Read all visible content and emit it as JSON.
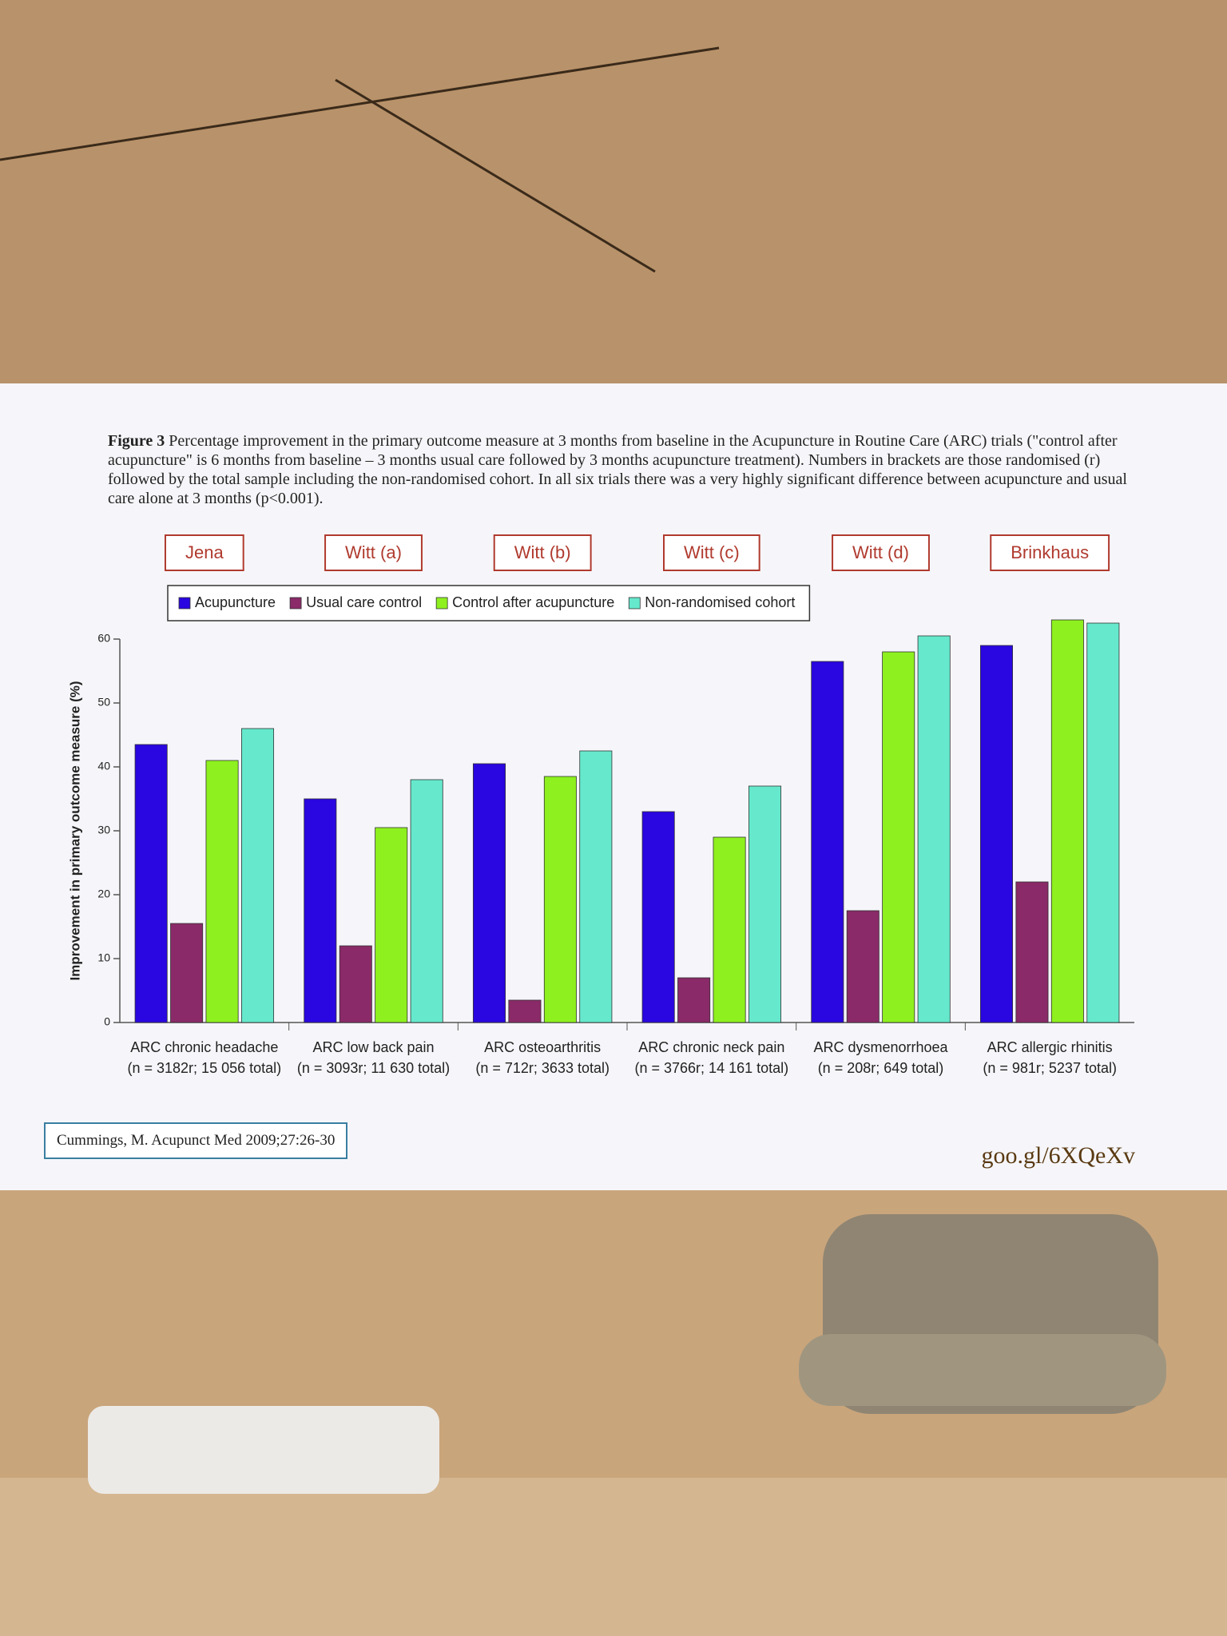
{
  "chart_data": {
    "type": "bar",
    "figure_label": "Figure 3",
    "caption": "Percentage improvement in the primary outcome measure at 3 months from baseline in the Acupuncture in Routine Care (ARC) trials (\"control after acupuncture\" is 6 months from baseline – 3 months usual care followed by 3 months acupuncture treatment). Numbers in brackets are those randomised (r) followed by the total sample including the non-randomised cohort. In all six trials there was a very highly significant difference between acupuncture and usual care alone at 3 months (p<0.001).",
    "trials": [
      "Jena",
      "Witt (a)",
      "Witt (b)",
      "Witt (c)",
      "Witt (d)",
      "Brinkhaus"
    ],
    "categories": [
      "ARC chronic headache",
      "ARC low back pain",
      "ARC osteoarthritis",
      "ARC chronic neck pain",
      "ARC dysmenorrhoea",
      "ARC allergic rhinitis"
    ],
    "category_subtitles": [
      "(n = 3182r; 15 056 total)",
      "(n = 3093r; 11 630 total)",
      "(n = 712r; 3633 total)",
      "(n = 3766r; 14 161 total)",
      "(n = 208r; 649 total)",
      "(n = 981r; 5237 total)"
    ],
    "ylabel": "Improvement in primary outcome measure (%)",
    "ylim": [
      0,
      60
    ],
    "yticks": [
      0,
      10,
      20,
      30,
      40,
      50,
      60
    ],
    "series": [
      {
        "name": "Acupuncture",
        "color": "#2a06e0",
        "values": [
          43.5,
          35,
          40.5,
          33,
          56.5,
          59
        ]
      },
      {
        "name": "Usual care control",
        "color": "#8a2a68",
        "values": [
          15.5,
          12,
          3.5,
          7,
          17.5,
          22
        ]
      },
      {
        "name": "Control after acupuncture",
        "color": "#8ef01e",
        "values": [
          41,
          30.5,
          38.5,
          29,
          58,
          63
        ]
      },
      {
        "name": "Non-randomised cohort",
        "color": "#66e8cc",
        "values": [
          46,
          38,
          42.5,
          37,
          60.5,
          62.5
        ]
      }
    ],
    "citation": "Cummings, M. Acupunct Med 2009;27:26-30",
    "source": "goo.gl/6XQeXv"
  }
}
